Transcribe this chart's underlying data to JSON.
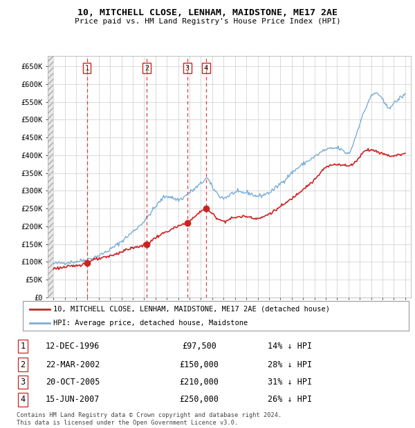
{
  "title1": "10, MITCHELL CLOSE, LENHAM, MAIDSTONE, ME17 2AE",
  "title2": "Price paid vs. HM Land Registry's House Price Index (HPI)",
  "ylabel_ticks": [
    "£0",
    "£50K",
    "£100K",
    "£150K",
    "£200K",
    "£250K",
    "£300K",
    "£350K",
    "£400K",
    "£450K",
    "£500K",
    "£550K",
    "£600K",
    "£650K"
  ],
  "ytick_vals": [
    0,
    50000,
    100000,
    150000,
    200000,
    250000,
    300000,
    350000,
    400000,
    450000,
    500000,
    550000,
    600000,
    650000
  ],
  "xlim_start": 1993.5,
  "xlim_end": 2025.5,
  "ylim_min": 0,
  "ylim_max": 680000,
  "sale_dates": [
    1996.95,
    2002.22,
    2005.8,
    2007.46
  ],
  "sale_prices": [
    97500,
    150000,
    210000,
    250000
  ],
  "sale_labels": [
    "1",
    "2",
    "3",
    "4"
  ],
  "sale_info": [
    {
      "num": "1",
      "date": "12-DEC-1996",
      "price": "£97,500",
      "pct": "14% ↓ HPI"
    },
    {
      "num": "2",
      "date": "22-MAR-2002",
      "price": "£150,000",
      "pct": "28% ↓ HPI"
    },
    {
      "num": "3",
      "date": "20-OCT-2005",
      "price": "£210,000",
      "pct": "31% ↓ HPI"
    },
    {
      "num": "4",
      "date": "15-JUN-2007",
      "price": "£250,000",
      "pct": "26% ↓ HPI"
    }
  ],
  "hpi_color": "#7aaed6",
  "price_color": "#cc2222",
  "vline_color": "#cc2222",
  "dot_color": "#cc2222",
  "grid_color": "#cccccc",
  "legend_label_price": "10, MITCHELL CLOSE, LENHAM, MAIDSTONE, ME17 2AE (detached house)",
  "legend_label_hpi": "HPI: Average price, detached house, Maidstone",
  "footer": "Contains HM Land Registry data © Crown copyright and database right 2024.\nThis data is licensed under the Open Government Licence v3.0.",
  "hpi_waypoints_t": [
    1994.0,
    1995.0,
    1996.0,
    1997.0,
    1998.0,
    1999.0,
    2000.0,
    2001.0,
    2002.0,
    2003.0,
    2004.0,
    2005.0,
    2006.0,
    2007.0,
    2007.5,
    2008.0,
    2009.0,
    2010.0,
    2011.0,
    2012.0,
    2013.0,
    2014.0,
    2015.0,
    2016.0,
    2017.0,
    2018.0,
    2019.0,
    2020.0,
    2020.5,
    2021.0,
    2021.5,
    2022.0,
    2022.5,
    2023.0,
    2023.5,
    2024.0,
    2024.5,
    2025.0
  ],
  "hpi_waypoints_v": [
    95000,
    98000,
    101000,
    107000,
    118000,
    135000,
    158000,
    185000,
    215000,
    255000,
    285000,
    275000,
    295000,
    320000,
    335000,
    310000,
    280000,
    295000,
    295000,
    285000,
    295000,
    320000,
    350000,
    375000,
    395000,
    415000,
    420000,
    405000,
    440000,
    490000,
    530000,
    565000,
    575000,
    555000,
    535000,
    545000,
    560000,
    570000
  ],
  "price_waypoints_t": [
    1994.0,
    1995.0,
    1996.0,
    1996.95,
    1997.5,
    1998.5,
    1999.5,
    2000.5,
    2001.5,
    2002.22,
    2003.0,
    2004.0,
    2005.0,
    2005.8,
    2006.5,
    2007.46,
    2008.0,
    2009.0,
    2010.0,
    2011.0,
    2012.0,
    2013.0,
    2014.0,
    2015.0,
    2016.0,
    2017.0,
    2018.0,
    2019.0,
    2020.0,
    2021.0,
    2021.5,
    2022.0,
    2022.5,
    2023.0,
    2023.5,
    2024.0,
    2024.5,
    2025.0
  ],
  "price_waypoints_v": [
    82000,
    85000,
    90000,
    97500,
    105000,
    112000,
    122000,
    135000,
    143000,
    150000,
    168000,
    185000,
    200000,
    210000,
    228000,
    250000,
    235000,
    215000,
    225000,
    228000,
    222000,
    235000,
    255000,
    278000,
    305000,
    330000,
    365000,
    375000,
    370000,
    395000,
    415000,
    415000,
    410000,
    405000,
    400000,
    398000,
    402000,
    405000
  ]
}
